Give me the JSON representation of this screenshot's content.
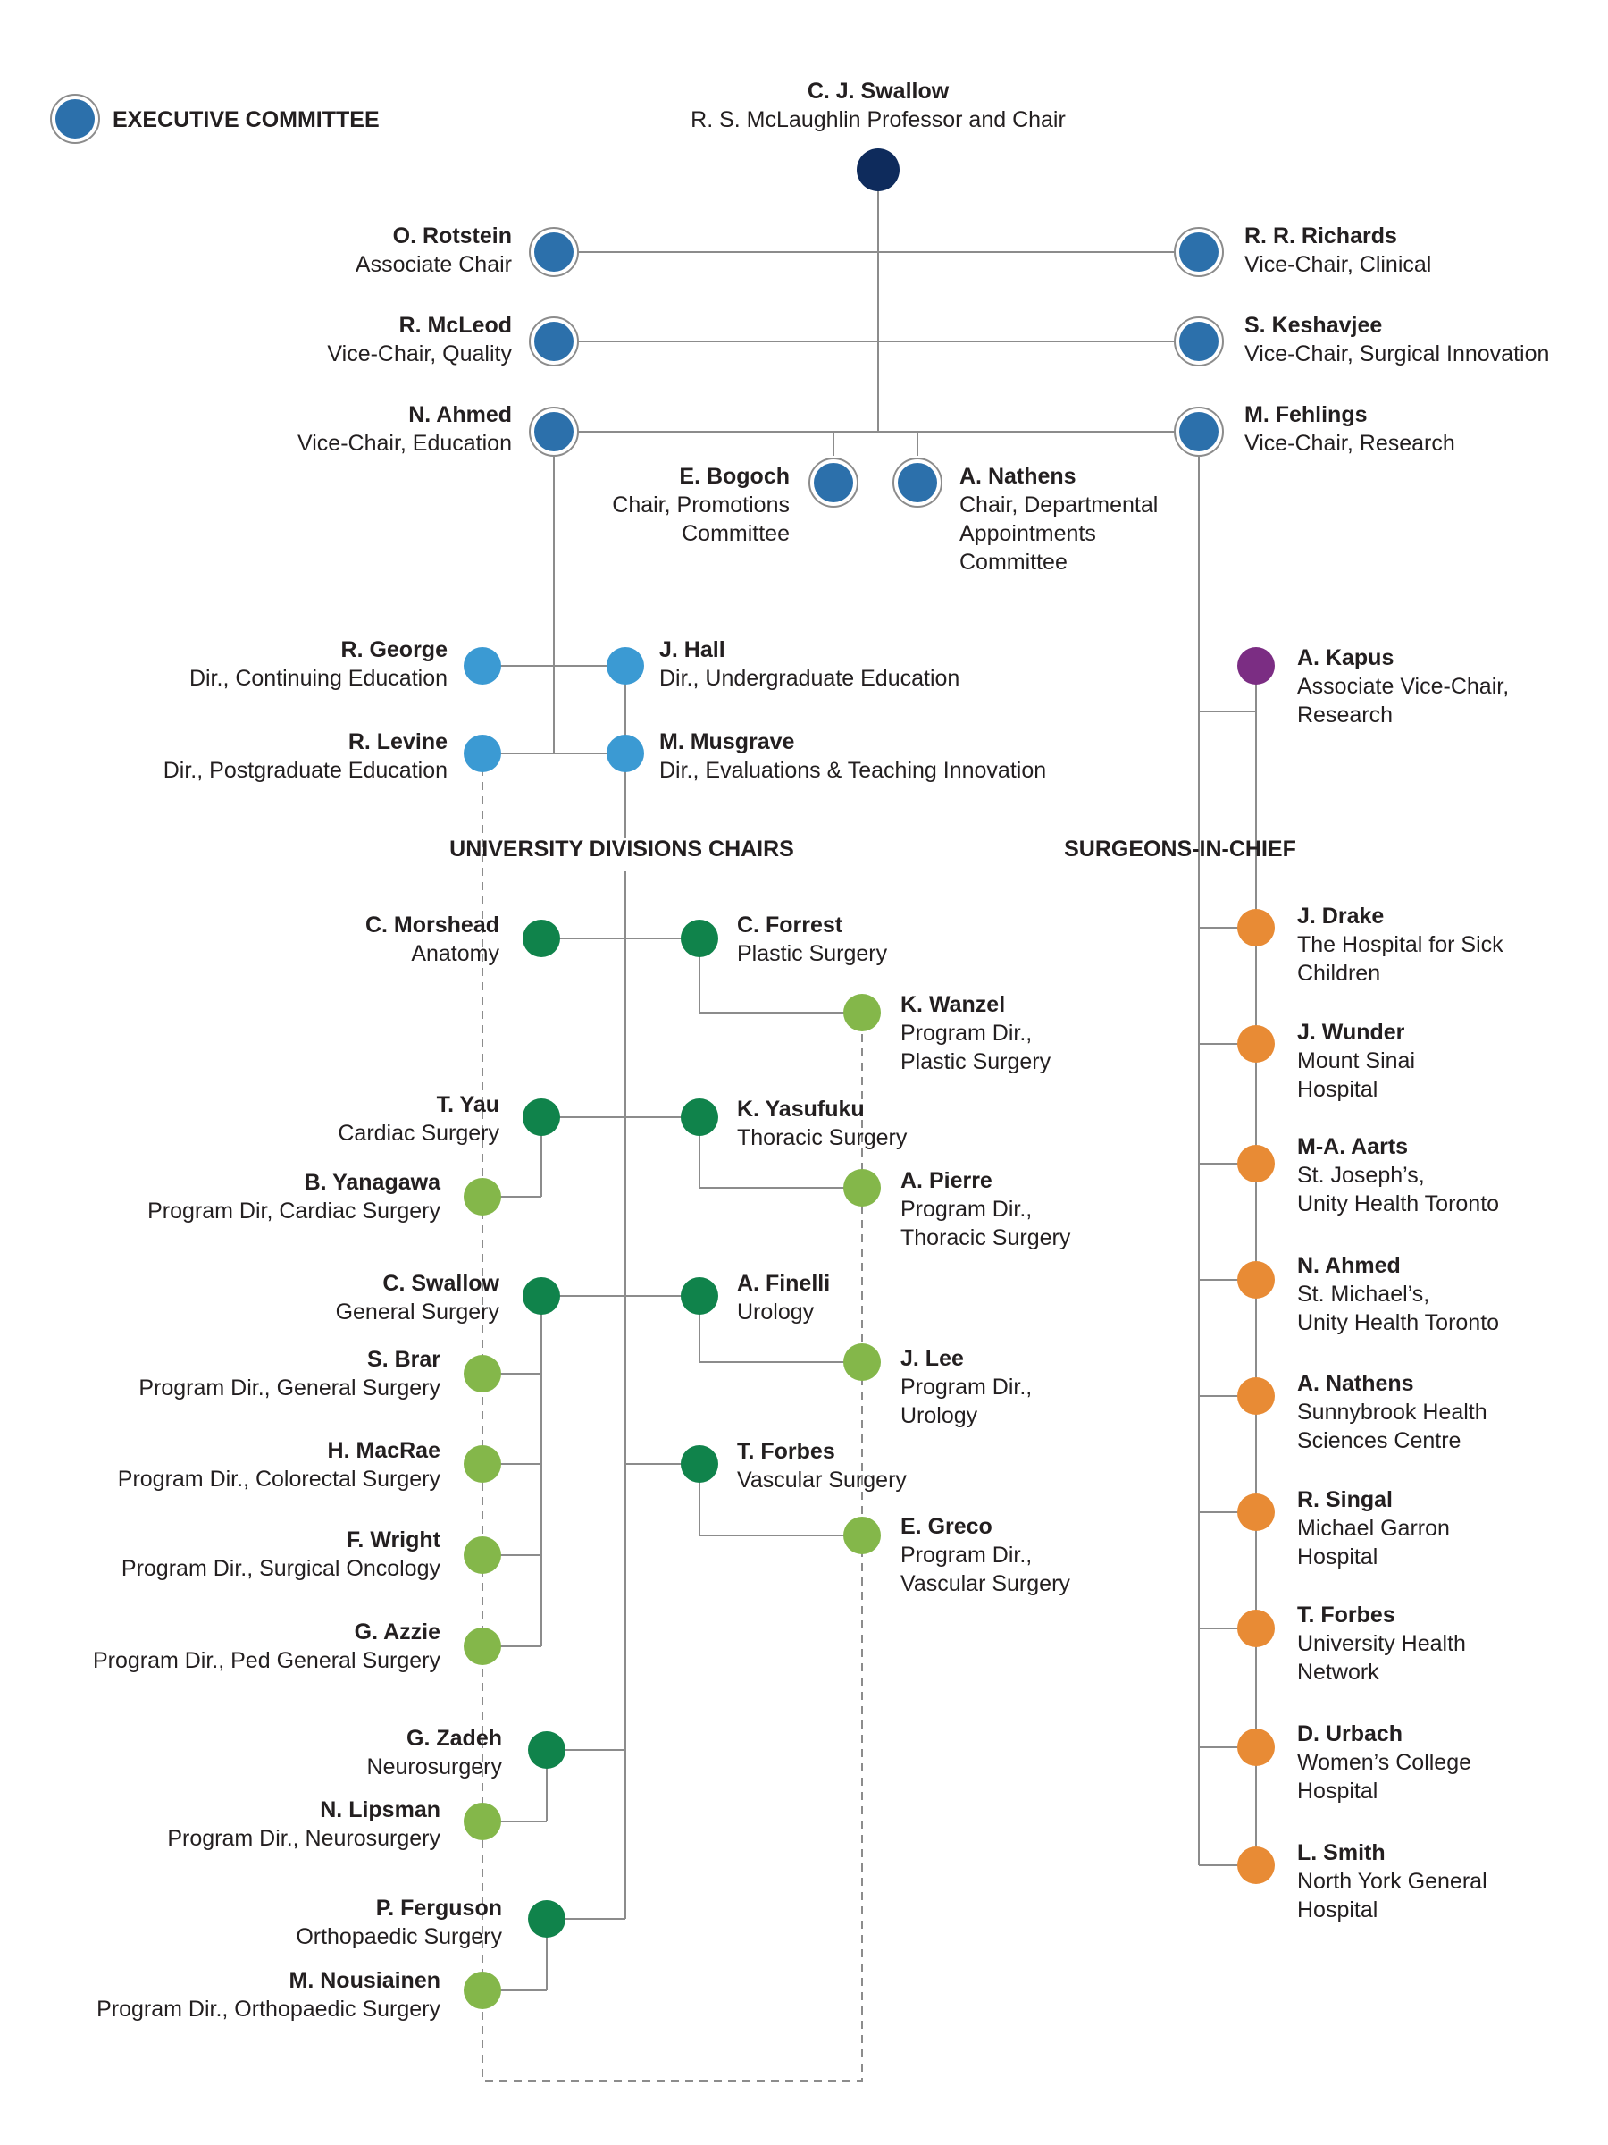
{
  "colors": {
    "chair": "#0e2b5c",
    "executive": "#2c70ab",
    "education": "#3b9ad3",
    "research": "#7b2d83",
    "division_chair": "#10834b",
    "program_director": "#84b74a",
    "surgeon_in_chief": "#e88b35",
    "line": "#8c8c8c"
  },
  "legend": {
    "label": "EXECUTIVE COMMITTEE"
  },
  "headings": {
    "divisions": "UNIVERSITY DIVISIONS CHAIRS",
    "surgeons": "SURGEONS-IN-CHIEF"
  },
  "nodes": [
    {
      "id": "swallow-chair",
      "name": "C. J. Swallow",
      "lines": [
        "R. S. McLaughlin Professor and Chair"
      ],
      "color": "chair"
    },
    {
      "id": "rotstein",
      "name": "O. Rotstein",
      "lines": [
        "Associate Chair"
      ],
      "color": "executive"
    },
    {
      "id": "richards",
      "name": "R. R. Richards",
      "lines": [
        "Vice-Chair, Clinical"
      ],
      "color": "executive"
    },
    {
      "id": "mcleod",
      "name": "R. McLeod",
      "lines": [
        "Vice-Chair, Quality"
      ],
      "color": "executive"
    },
    {
      "id": "keshavjee",
      "name": "S. Keshavjee",
      "lines": [
        "Vice-Chair, Surgical Innovation"
      ],
      "color": "executive"
    },
    {
      "id": "ahmed-ed",
      "name": "N. Ahmed",
      "lines": [
        "Vice-Chair, Education"
      ],
      "color": "executive"
    },
    {
      "id": "fehlings",
      "name": "M. Fehlings",
      "lines": [
        "Vice-Chair, Research"
      ],
      "color": "executive"
    },
    {
      "id": "bogoch",
      "name": "E. Bogoch",
      "lines": [
        "Chair, Promotions",
        "Committee"
      ],
      "color": "executive"
    },
    {
      "id": "nathens-exec",
      "name": "A. Nathens",
      "lines": [
        "Chair, Departmental",
        "Appointments",
        "Committee"
      ],
      "color": "executive"
    },
    {
      "id": "george",
      "name": "R. George",
      "lines": [
        "Dir., Continuing Education"
      ],
      "color": "education"
    },
    {
      "id": "hall",
      "name": "J. Hall",
      "lines": [
        "Dir., Undergraduate Education"
      ],
      "color": "education"
    },
    {
      "id": "levine",
      "name": "R. Levine",
      "lines": [
        "Dir., Postgraduate Education"
      ],
      "color": "education"
    },
    {
      "id": "musgrave",
      "name": "M. Musgrave",
      "lines": [
        "Dir., Evaluations & Teaching Innovation"
      ],
      "color": "education"
    },
    {
      "id": "kapus",
      "name": "A. Kapus",
      "lines": [
        "Associate Vice-Chair,",
        "Research"
      ],
      "color": "research"
    },
    {
      "id": "morshead",
      "name": "C. Morshead",
      "lines": [
        "Anatomy"
      ],
      "color": "division_chair"
    },
    {
      "id": "forrest",
      "name": "C. Forrest",
      "lines": [
        "Plastic Surgery"
      ],
      "color": "division_chair"
    },
    {
      "id": "wanzel",
      "name": "K. Wanzel",
      "lines": [
        "Program Dir.,",
        "Plastic Surgery"
      ],
      "color": "program_director"
    },
    {
      "id": "yau",
      "name": "T. Yau",
      "lines": [
        "Cardiac Surgery"
      ],
      "color": "division_chair"
    },
    {
      "id": "yasufuku",
      "name": "K. Yasufuku",
      "lines": [
        "Thoracic Surgery"
      ],
      "color": "division_chair"
    },
    {
      "id": "yanagawa",
      "name": "B. Yanagawa",
      "lines": [
        "Program Dir, Cardiac Surgery"
      ],
      "color": "program_director"
    },
    {
      "id": "pierre",
      "name": "A. Pierre",
      "lines": [
        "Program Dir.,",
        "Thoracic Surgery"
      ],
      "color": "program_director"
    },
    {
      "id": "swallow-gen",
      "name": "C. Swallow",
      "lines": [
        "General Surgery"
      ],
      "color": "division_chair"
    },
    {
      "id": "finelli",
      "name": "A. Finelli",
      "lines": [
        "Urology"
      ],
      "color": "division_chair"
    },
    {
      "id": "brar",
      "name": "S. Brar",
      "lines": [
        "Program Dir., General Surgery"
      ],
      "color": "program_director"
    },
    {
      "id": "lee",
      "name": "J. Lee",
      "lines": [
        "Program Dir.,",
        "Urology"
      ],
      "color": "program_director"
    },
    {
      "id": "macrae",
      "name": "H. MacRae",
      "lines": [
        "Program Dir., Colorectal Surgery"
      ],
      "color": "program_director"
    },
    {
      "id": "forbes-vasc",
      "name": "T. Forbes",
      "lines": [
        "Vascular Surgery"
      ],
      "color": "division_chair"
    },
    {
      "id": "greco",
      "name": "E. Greco",
      "lines": [
        "Program Dir.,",
        "Vascular Surgery"
      ],
      "color": "program_director"
    },
    {
      "id": "wright",
      "name": "F. Wright",
      "lines": [
        "Program Dir., Surgical Oncology"
      ],
      "color": "program_director"
    },
    {
      "id": "azzie",
      "name": "G. Azzie",
      "lines": [
        "Program Dir., Ped General Surgery"
      ],
      "color": "program_director"
    },
    {
      "id": "zadeh",
      "name": "G. Zadeh",
      "lines": [
        "Neurosurgery"
      ],
      "color": "division_chair"
    },
    {
      "id": "lipsman",
      "name": "N. Lipsman",
      "lines": [
        "Program Dir., Neurosurgery"
      ],
      "color": "program_director"
    },
    {
      "id": "ferguson",
      "name": "P. Ferguson",
      "lines": [
        "Orthopaedic Surgery"
      ],
      "color": "division_chair"
    },
    {
      "id": "nousiainen",
      "name": "M. Nousiainen",
      "lines": [
        "Program Dir., Orthopaedic Surgery"
      ],
      "color": "program_director"
    },
    {
      "id": "drake",
      "name": "J. Drake",
      "lines": [
        "The Hospital for Sick",
        "Children"
      ],
      "color": "surgeon_in_chief"
    },
    {
      "id": "wunder",
      "name": "J. Wunder",
      "lines": [
        "Mount Sinai",
        "Hospital"
      ],
      "color": "surgeon_in_chief"
    },
    {
      "id": "aarts",
      "name": "M-A. Aarts",
      "lines": [
        "St. Joseph’s,",
        "Unity Health Toronto"
      ],
      "color": "surgeon_in_chief"
    },
    {
      "id": "ahmed-sic",
      "name": "N. Ahmed",
      "lines": [
        "St. Michael’s,",
        "Unity Health Toronto"
      ],
      "color": "surgeon_in_chief"
    },
    {
      "id": "nathens-sic",
      "name": "A. Nathens",
      "lines": [
        "Sunnybrook Health",
        "Sciences Centre"
      ],
      "color": "surgeon_in_chief"
    },
    {
      "id": "singal",
      "name": "R. Singal",
      "lines": [
        "Michael Garron",
        "Hospital"
      ],
      "color": "surgeon_in_chief"
    },
    {
      "id": "forbes-uhn",
      "name": "T. Forbes",
      "lines": [
        "University Health",
        "Network"
      ],
      "color": "surgeon_in_chief"
    },
    {
      "id": "urbach",
      "name": "D. Urbach",
      "lines": [
        "Women’s College",
        "Hospital"
      ],
      "color": "surgeon_in_chief"
    },
    {
      "id": "smith",
      "name": "L. Smith",
      "lines": [
        "North York General",
        "Hospital"
      ],
      "color": "surgeon_in_chief"
    }
  ]
}
